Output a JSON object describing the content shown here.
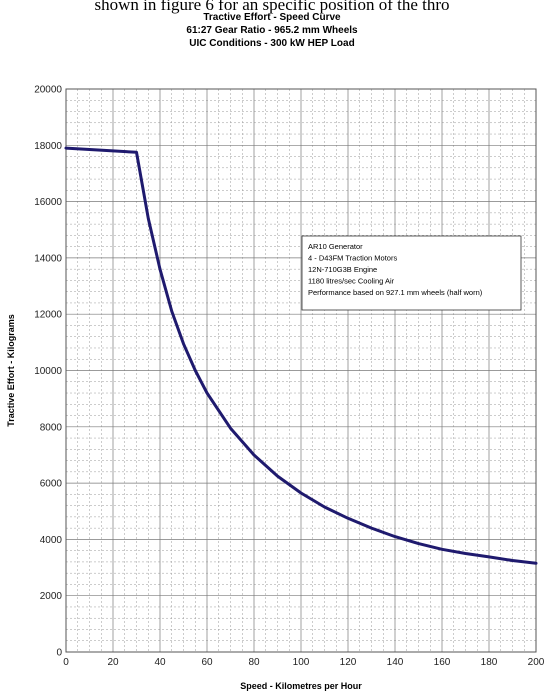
{
  "header": {
    "cropped_text": "shown in figure 6 for an specific position of the thro"
  },
  "chart_data": {
    "type": "line",
    "title": "Tractive Effort - Speed Curve",
    "subtitle": [
      "61:27 Gear Ratio - 965.2 mm Wheels",
      "UIC Conditions - 300 kW HEP Load"
    ],
    "xlabel": "Speed - Kilometres per Hour",
    "ylabel": "Tractive Effort - Kilograms",
    "xlim": [
      0,
      200
    ],
    "ylim": [
      0,
      20000
    ],
    "x_ticks": [
      "0",
      "20",
      "40",
      "60",
      "80",
      "100",
      "120",
      "140",
      "160",
      "180",
      "200"
    ],
    "y_ticks": [
      "0",
      "2000",
      "4000",
      "6000",
      "8000",
      "10000",
      "12000",
      "14000",
      "16000",
      "18000",
      "20000"
    ],
    "grid": true,
    "line_color": "#1f1a6e",
    "series": [
      {
        "x": [
          0,
          10,
          20,
          30,
          35,
          40,
          45,
          50,
          55,
          60,
          70,
          80,
          90,
          100,
          110,
          120,
          130,
          140,
          150,
          160,
          170,
          180,
          190,
          200
        ],
        "values": [
          17900,
          17850,
          17800,
          17750,
          15400,
          13600,
          12100,
          10950,
          10000,
          9200,
          7950,
          7000,
          6250,
          5650,
          5150,
          4750,
          4400,
          4100,
          3850,
          3650,
          3500,
          3380,
          3250,
          3150
        ]
      }
    ],
    "legend": {
      "placement": "upper-right",
      "lines": [
        "AR10 Generator",
        "4 - D43FM Traction Motors",
        "12N-710G3B Engine",
        "1180 litres/sec Cooling Air",
        "Performance based on 927.1 mm wheels (half worn)"
      ]
    }
  }
}
